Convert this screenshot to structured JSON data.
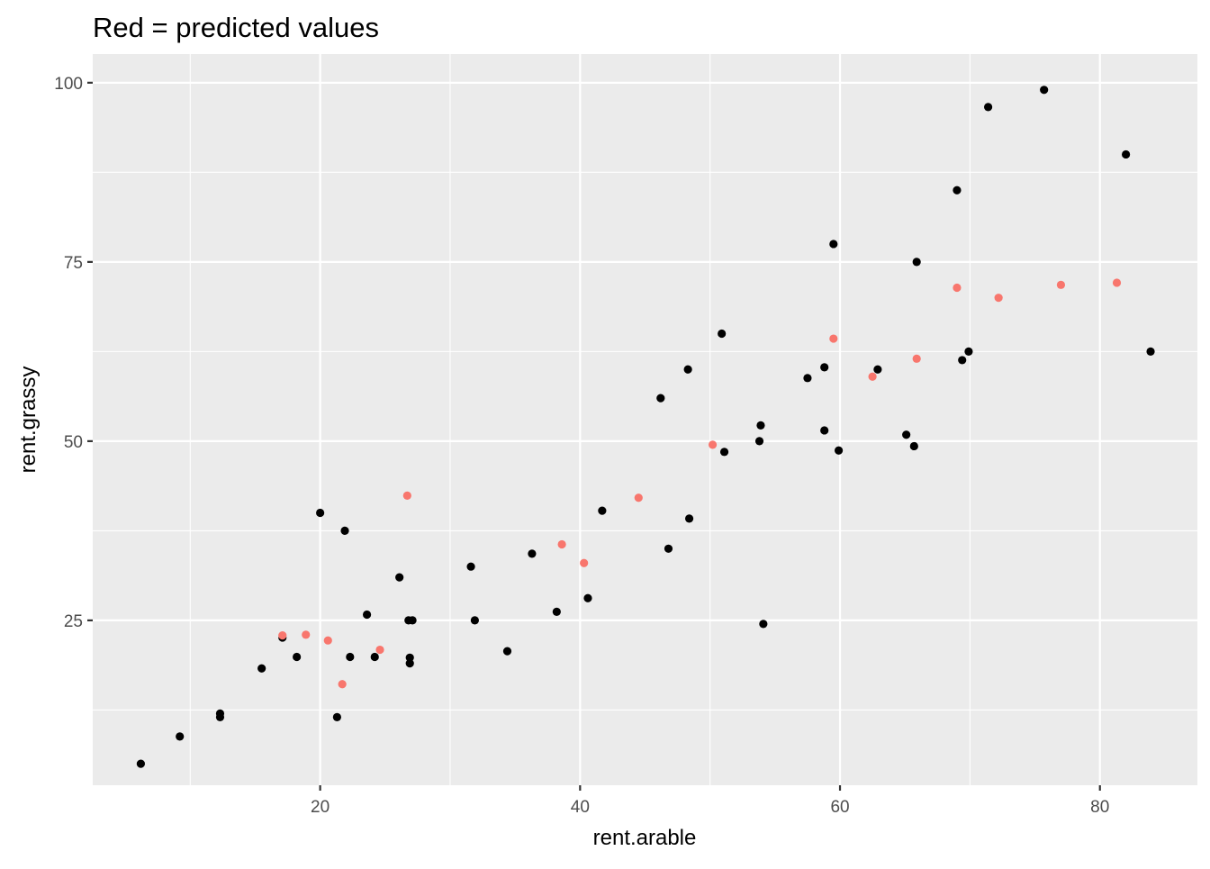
{
  "chart_data": {
    "type": "scatter",
    "title": "Red = predicted values",
    "xlabel": "rent.arable",
    "ylabel": "rent.grassy",
    "xlim": [
      2.5,
      87.5
    ],
    "ylim": [
      2,
      104
    ],
    "x_ticks": [
      20,
      40,
      60,
      80
    ],
    "x_minor": [
      10,
      30,
      50,
      70
    ],
    "y_ticks": [
      25,
      50,
      75,
      100
    ],
    "y_minor": [
      12.5,
      37.5,
      62.5,
      87.5
    ],
    "x_tick_labels": [
      "20",
      "40",
      "60",
      "80"
    ],
    "y_tick_labels": [
      "25",
      "50",
      "75",
      "100"
    ],
    "grid": true,
    "legend": "none",
    "series": [
      {
        "color": "#000000",
        "points": [
          [
            6.2,
            5.0
          ],
          [
            9.2,
            8.8
          ],
          [
            12.3,
            11.5
          ],
          [
            12.3,
            12.0
          ],
          [
            15.5,
            18.3
          ],
          [
            17.1,
            22.6
          ],
          [
            18.2,
            19.9
          ],
          [
            20.0,
            40.0
          ],
          [
            21.3,
            11.5
          ],
          [
            21.9,
            37.5
          ],
          [
            22.3,
            19.9
          ],
          [
            23.6,
            25.8
          ],
          [
            24.2,
            19.9
          ],
          [
            26.1,
            31.0
          ],
          [
            26.8,
            25.0
          ],
          [
            27.1,
            25.0
          ],
          [
            26.9,
            19.8
          ],
          [
            26.9,
            19.0
          ],
          [
            31.6,
            32.5
          ],
          [
            31.9,
            25.0
          ],
          [
            34.4,
            20.7
          ],
          [
            36.3,
            34.3
          ],
          [
            38.2,
            26.2
          ],
          [
            40.6,
            28.1
          ],
          [
            41.7,
            40.3
          ],
          [
            46.2,
            56.0
          ],
          [
            46.8,
            35.0
          ],
          [
            48.3,
            60.0
          ],
          [
            48.4,
            39.2
          ],
          [
            50.9,
            65.0
          ],
          [
            51.1,
            48.5
          ],
          [
            53.8,
            50.0
          ],
          [
            53.9,
            52.2
          ],
          [
            54.1,
            24.5
          ],
          [
            57.5,
            58.8
          ],
          [
            58.8,
            60.3
          ],
          [
            58.8,
            51.5
          ],
          [
            59.5,
            77.5
          ],
          [
            59.9,
            48.7
          ],
          [
            62.9,
            60.0
          ],
          [
            65.1,
            50.9
          ],
          [
            65.7,
            49.3
          ],
          [
            65.9,
            75.0
          ],
          [
            69.0,
            85.0
          ],
          [
            69.4,
            61.3
          ],
          [
            69.9,
            62.5
          ],
          [
            71.4,
            96.6
          ],
          [
            75.7,
            99.0
          ],
          [
            82.0,
            90.0
          ],
          [
            83.9,
            62.5
          ]
        ]
      },
      {
        "color": "#F8766D",
        "points": [
          [
            17.1,
            22.9
          ],
          [
            18.9,
            23.0
          ],
          [
            20.6,
            22.2
          ],
          [
            21.7,
            16.1
          ],
          [
            24.6,
            20.9
          ],
          [
            26.7,
            42.4
          ],
          [
            38.6,
            35.6
          ],
          [
            40.3,
            33.0
          ],
          [
            44.5,
            42.1
          ],
          [
            50.2,
            49.5
          ],
          [
            59.5,
            64.3
          ],
          [
            62.5,
            59.0
          ],
          [
            65.9,
            61.5
          ],
          [
            69.0,
            71.4
          ],
          [
            72.2,
            70.0
          ],
          [
            77.0,
            71.8
          ],
          [
            81.3,
            72.1
          ]
        ]
      }
    ]
  }
}
